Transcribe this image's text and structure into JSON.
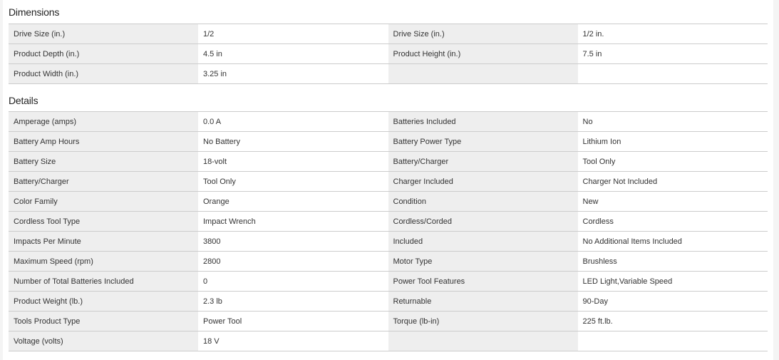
{
  "sections": [
    {
      "title": "Dimensions",
      "rows": [
        [
          "Drive Size (in.)",
          "1/2",
          "Drive Size (in.)",
          "1/2 in."
        ],
        [
          "Product Depth (in.)",
          "4.5 in",
          "Product Height (in.)",
          "7.5 in"
        ],
        [
          "Product Width (in.)",
          "3.25 in",
          "",
          ""
        ]
      ]
    },
    {
      "title": "Details",
      "rows": [
        [
          "Amperage (amps)",
          "0.0 A",
          "Batteries Included",
          "No"
        ],
        [
          "Battery Amp Hours",
          "No Battery",
          "Battery Power Type",
          "Lithium Ion"
        ],
        [
          "Battery Size",
          "18-volt",
          "Battery/Charger",
          "Tool Only"
        ],
        [
          "Battery/Charger",
          "Tool Only",
          "Charger Included",
          "Charger Not Included"
        ],
        [
          "Color Family",
          "Orange",
          "Condition",
          "New"
        ],
        [
          "Cordless Tool Type",
          "Impact Wrench",
          "Cordless/Corded",
          "Cordless"
        ],
        [
          "Impacts Per Minute",
          "3800",
          "Included",
          "No Additional Items Included"
        ],
        [
          "Maximum Speed (rpm)",
          "2800",
          "Motor Type",
          "Brushless"
        ],
        [
          "Number of Total Batteries Included",
          "0",
          "Power Tool Features",
          "LED Light,Variable Speed"
        ],
        [
          "Product Weight (lb.)",
          "2.3 lb",
          "Returnable",
          "90-Day"
        ],
        [
          "Tools Product Type",
          "Power Tool",
          "Torque (lb-in)",
          "225 ft.lb."
        ],
        [
          "Voltage (volts)",
          "18 V",
          "",
          ""
        ]
      ]
    }
  ]
}
